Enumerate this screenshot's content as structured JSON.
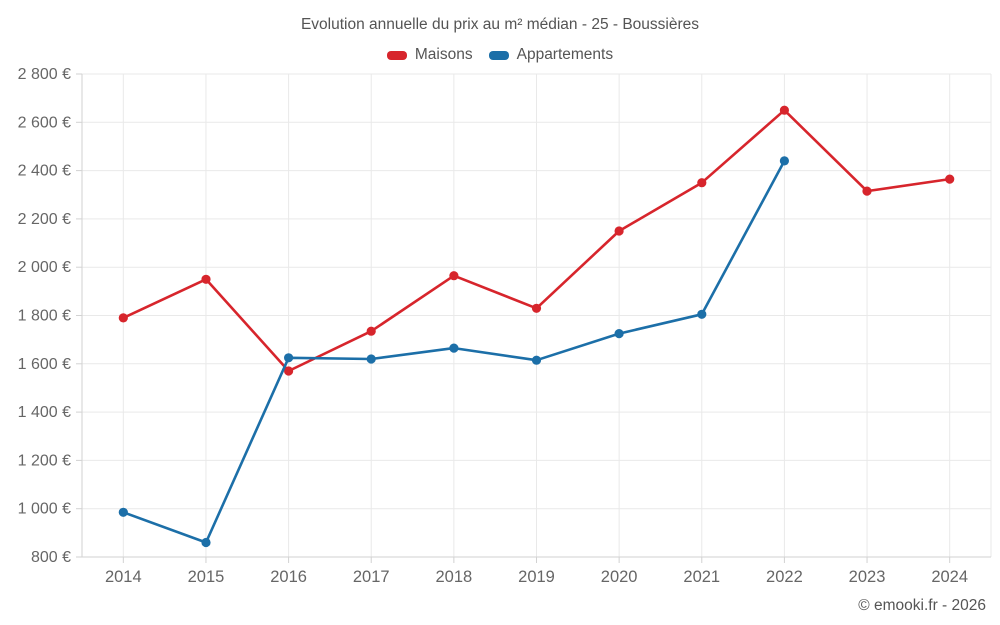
{
  "chart": {
    "title": "Evolution annuelle du prix au m² médian - 25 - Boussières",
    "footer": "© emooki.fr - 2026"
  },
  "chart_data": {
    "type": "line",
    "title": "Evolution annuelle du prix au m² médian - 25 - Boussières",
    "categories": [
      "2014",
      "2015",
      "2016",
      "2017",
      "2018",
      "2019",
      "2020",
      "2021",
      "2022",
      "2023",
      "2024"
    ],
    "series": [
      {
        "name": "Maisons",
        "color": "#d7252c",
        "values": [
          1790,
          1950,
          1570,
          1735,
          1965,
          1830,
          2150,
          2350,
          2650,
          2315,
          2365
        ]
      },
      {
        "name": "Appartements",
        "color": "#1c6fa8",
        "values": [
          985,
          860,
          1625,
          1620,
          1665,
          1615,
          1725,
          1805,
          2440,
          null,
          null
        ]
      }
    ],
    "ylim": [
      800,
      2800
    ],
    "ytick_step": 200,
    "ytick_suffix": " €",
    "grid": true,
    "legend_position": "top"
  }
}
